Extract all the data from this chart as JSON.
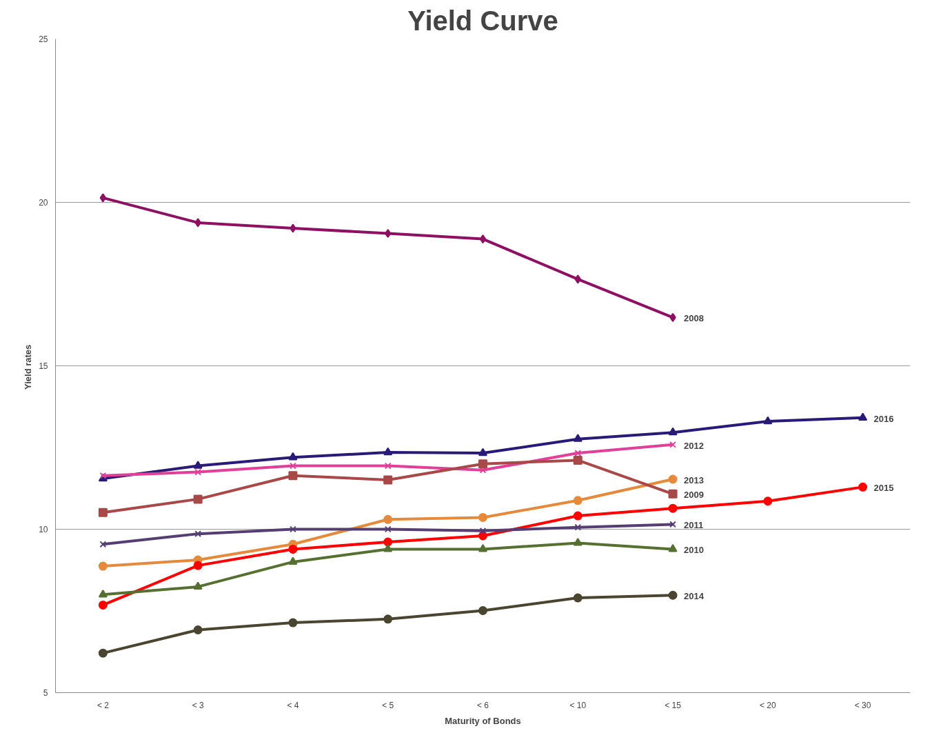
{
  "chart_data": {
    "type": "line",
    "title": "Yield Curve",
    "xlabel": "Maturity of Bonds",
    "ylabel": "Yield  rates",
    "categories": [
      "< 2",
      "< 3",
      "< 4",
      "< 5",
      "< 6",
      "< 10",
      "< 15",
      "< 20",
      "< 30"
    ],
    "ylim": [
      5,
      25
    ],
    "yticks": [
      5,
      10,
      15,
      20,
      25
    ],
    "grid": "y",
    "legend": false,
    "series": [
      {
        "name": "2008",
        "color": "#8e1062",
        "marker": "diamond",
        "values": [
          20.14,
          19.38,
          19.21,
          19.05,
          18.88,
          17.65,
          16.48,
          null,
          null
        ]
      },
      {
        "name": "2016",
        "color": "#2a1a78",
        "marker": "triangle",
        "values": [
          11.55,
          11.94,
          12.2,
          12.35,
          12.33,
          12.76,
          12.96,
          13.3,
          13.41
        ]
      },
      {
        "name": "2012",
        "color": "#e0409a",
        "marker": "cross",
        "values": [
          11.64,
          11.75,
          11.94,
          11.94,
          11.81,
          12.33,
          12.59,
          null,
          null
        ]
      },
      {
        "name": "2013",
        "color": "#e58a3c",
        "marker": "circle",
        "values": [
          8.87,
          9.06,
          9.54,
          10.3,
          10.36,
          10.88,
          11.53,
          null,
          null
        ]
      },
      {
        "name": "2009",
        "color": "#a84848",
        "marker": "square",
        "values": [
          10.51,
          10.92,
          11.64,
          11.51,
          12.0,
          12.11,
          11.08,
          null,
          null
        ]
      },
      {
        "name": "2015",
        "color": "#ff0000",
        "marker": "circle",
        "values": [
          7.68,
          8.89,
          9.39,
          9.61,
          9.8,
          10.41,
          10.64,
          10.86,
          11.29
        ]
      },
      {
        "name": "2011",
        "color": "#553f72",
        "marker": "cross",
        "values": [
          9.54,
          9.86,
          10.0,
          10.0,
          9.95,
          10.06,
          10.15,
          null,
          null
        ]
      },
      {
        "name": "2010",
        "color": "#557030",
        "marker": "triangle",
        "values": [
          8.0,
          8.24,
          9.0,
          9.39,
          9.39,
          9.58,
          9.39,
          null,
          null
        ]
      },
      {
        "name": "2014",
        "color": "#4a4530",
        "marker": "circle",
        "values": [
          6.21,
          6.92,
          7.14,
          7.25,
          7.51,
          7.9,
          7.98,
          null,
          null
        ]
      }
    ]
  }
}
